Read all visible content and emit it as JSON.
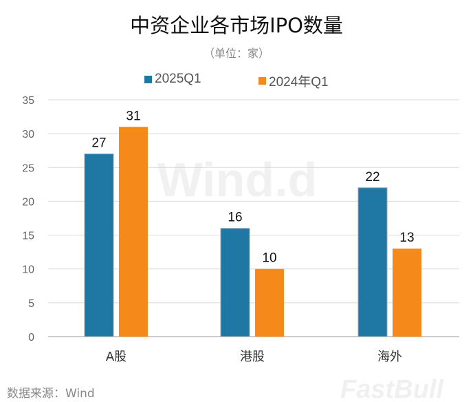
{
  "chart_data": {
    "type": "bar",
    "title": "中资企业各市场IPO数量",
    "subtitle": "（单位：家）",
    "categories": [
      "A股",
      "港股",
      "海外"
    ],
    "series": [
      {
        "name": "2025Q1",
        "values": [
          27,
          16,
          22
        ],
        "color": "#1f77a4"
      },
      {
        "name": "2024年Q1",
        "values": [
          31,
          10,
          13
        ],
        "color": "#f5891a"
      }
    ],
    "ylim": [
      0,
      35
    ],
    "yticks": [
      0,
      5,
      10,
      15,
      20,
      25,
      30,
      35
    ],
    "grid": true,
    "legend_position": "top",
    "xlabel": "",
    "ylabel": ""
  },
  "source": "数据来源：Wind",
  "watermarks": [
    "Wind.d",
    "FastBull"
  ]
}
